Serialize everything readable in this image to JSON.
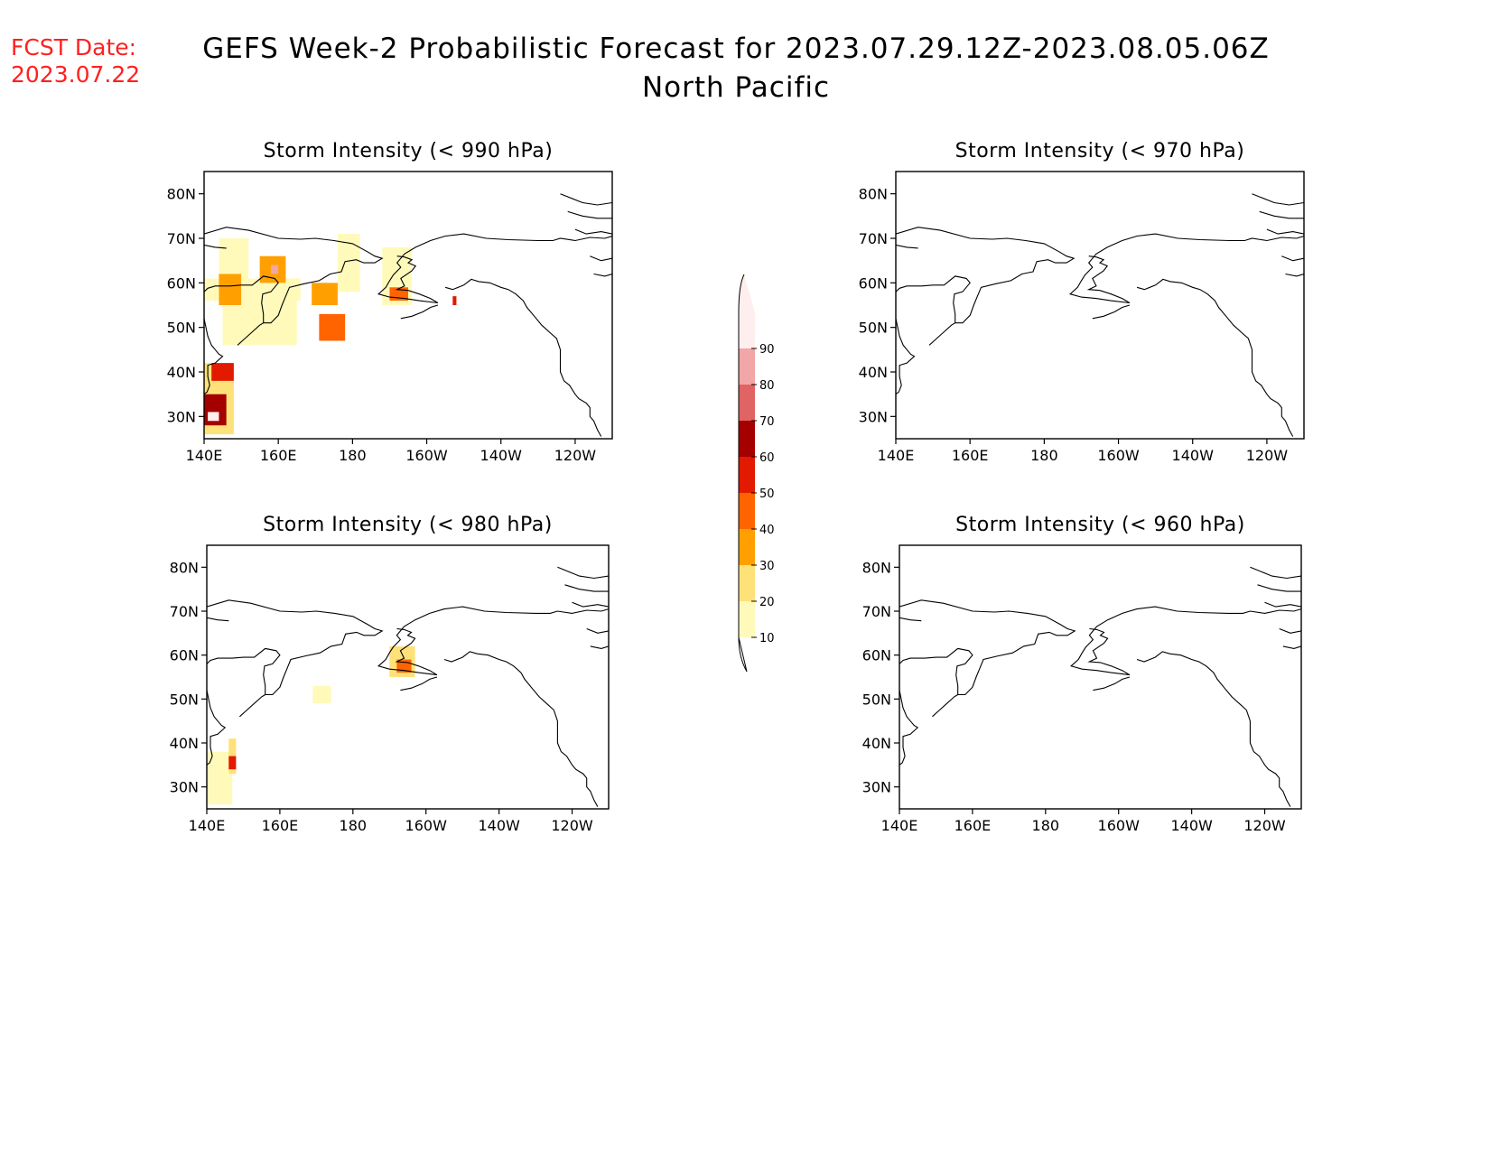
{
  "fcst": {
    "label": "FCST Date:",
    "date": "2023.07.22"
  },
  "title": {
    "line1": "GEFS Week-2 Probabilistic Forecast for 2023.07.29.12Z-2023.08.05.06Z",
    "line2": "North Pacific"
  },
  "colors": {
    "levels": [
      "#fffaba",
      "#ffe17a",
      "#ffa000",
      "#ff6400",
      "#e11a00",
      "#a50000",
      "#e06464",
      "#f2a6a6",
      "#ffeeee"
    ]
  },
  "colorbar": {
    "ticks": [
      "10",
      "20",
      "30",
      "40",
      "50",
      "60",
      "70",
      "80",
      "90"
    ]
  },
  "axes": {
    "lat_labels": [
      "80N",
      "70N",
      "60N",
      "50N",
      "40N",
      "30N"
    ],
    "lon_labels": [
      "140E",
      "160E",
      "180",
      "160W",
      "140W",
      "120W"
    ]
  },
  "panels": [
    {
      "title": "Storm Intensity (< 990 hPa)",
      "regions": [
        {
          "lon": [
            140,
            166
          ],
          "lat": [
            56,
            61
          ],
          "prob": 15
        },
        {
          "lon": [
            145,
            165
          ],
          "lat": [
            46,
            56
          ],
          "prob": 18
        },
        {
          "lon": [
            144,
            152
          ],
          "lat": [
            60,
            70
          ],
          "prob": 15
        },
        {
          "lon": [
            176,
            182
          ],
          "lat": [
            58,
            71
          ],
          "prob": 12
        },
        {
          "lon": [
            188,
            196
          ],
          "lat": [
            55,
            68
          ],
          "prob": 18
        },
        {
          "lon": [
            140,
            148
          ],
          "lat": [
            26,
            42
          ],
          "prob": 25
        },
        {
          "lon": [
            144,
            150
          ],
          "lat": [
            55,
            62
          ],
          "prob": 35
        },
        {
          "lon": [
            155,
            162
          ],
          "lat": [
            60,
            66
          ],
          "prob": 35
        },
        {
          "lon": [
            169,
            176
          ],
          "lat": [
            55,
            60
          ],
          "prob": 35
        },
        {
          "lon": [
            171,
            178
          ],
          "lat": [
            47,
            53
          ],
          "prob": 45
        },
        {
          "lon": [
            190,
            195
          ],
          "lat": [
            56,
            59
          ],
          "prob": 45
        },
        {
          "lon": [
            142,
            148
          ],
          "lat": [
            38,
            42
          ],
          "prob": 55
        },
        {
          "lon": [
            140,
            146
          ],
          "lat": [
            28,
            35
          ],
          "prob": 65
        },
        {
          "lon": [
            158,
            160
          ],
          "lat": [
            62,
            64
          ],
          "prob": 85
        },
        {
          "lon": [
            141,
            144
          ],
          "lat": [
            29,
            31
          ],
          "prob": 92
        },
        {
          "lon": [
            207,
            208
          ],
          "lat": [
            55,
            57
          ],
          "prob": 55
        }
      ]
    },
    {
      "title": "Storm Intensity (< 970 hPa)",
      "regions": []
    },
    {
      "title": "Storm Intensity (< 980 hPa)",
      "regions": [
        {
          "lon": [
            140,
            147
          ],
          "lat": [
            26,
            38
          ],
          "prob": 15
        },
        {
          "lon": [
            146,
            148
          ],
          "lat": [
            33,
            41
          ],
          "prob": 25
        },
        {
          "lon": [
            146,
            148
          ],
          "lat": [
            34,
            37
          ],
          "prob": 55
        },
        {
          "lon": [
            169,
            174
          ],
          "lat": [
            49,
            53
          ],
          "prob": 18
        },
        {
          "lon": [
            190,
            197
          ],
          "lat": [
            55,
            62
          ],
          "prob": 20
        },
        {
          "lon": [
            192,
            196
          ],
          "lat": [
            56,
            59
          ],
          "prob": 40
        }
      ]
    },
    {
      "title": "Storm Intensity (< 960 hPa)",
      "regions": []
    }
  ]
}
